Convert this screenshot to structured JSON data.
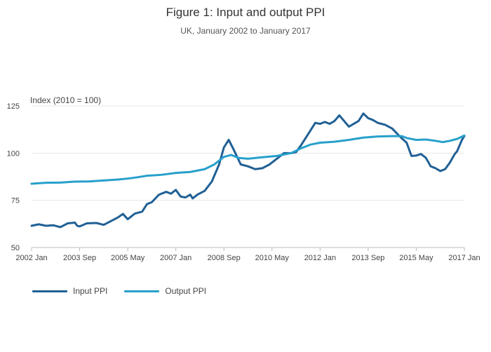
{
  "chart_data": {
    "type": "line",
    "title": "Figure 1: Input and output PPI",
    "subtitle": "UK, January 2002 to January 2017",
    "ylabel": "Index (2010 = 100)",
    "xlabel": "",
    "ylim": [
      50,
      125
    ],
    "yticks": [
      50,
      75,
      100,
      125
    ],
    "xlim": [
      "2002-01",
      "2017-01"
    ],
    "xticks": [
      {
        "label": "2002 Jan",
        "date": "2002-01"
      },
      {
        "label": "2003 Sep",
        "date": "2003-09"
      },
      {
        "label": "2005 May",
        "date": "2005-05"
      },
      {
        "label": "2007 Jan",
        "date": "2007-01"
      },
      {
        "label": "2008 Sep",
        "date": "2008-09"
      },
      {
        "label": "2010 May",
        "date": "2010-05"
      },
      {
        "label": "2012 Jan",
        "date": "2012-01"
      },
      {
        "label": "2013 Sep",
        "date": "2013-09"
      },
      {
        "label": "2015 May",
        "date": "2015-05"
      },
      {
        "label": "2017 Jan",
        "date": "2017-01"
      }
    ],
    "grid": true,
    "legend_position": "bottom-left",
    "series": [
      {
        "name": "Input PPI",
        "color": "#206095",
        "points": [
          [
            "2002-01",
            61.5
          ],
          [
            "2002-04",
            62.3
          ],
          [
            "2002-07",
            61.5
          ],
          [
            "2002-10",
            61.8
          ],
          [
            "2003-01",
            60.8
          ],
          [
            "2003-04",
            62.8
          ],
          [
            "2003-07",
            63.2
          ],
          [
            "2003-08",
            61.5
          ],
          [
            "2003-09",
            61.2
          ],
          [
            "2003-12",
            62.8
          ],
          [
            "2004-04",
            63.0
          ],
          [
            "2004-07",
            62.0
          ],
          [
            "2004-10",
            64.0
          ],
          [
            "2005-01",
            66.0
          ],
          [
            "2005-03",
            67.8
          ],
          [
            "2005-05",
            65.0
          ],
          [
            "2005-08",
            68.0
          ],
          [
            "2005-11",
            69.0
          ],
          [
            "2006-01",
            73.0
          ],
          [
            "2006-03",
            74.0
          ],
          [
            "2006-06",
            78.0
          ],
          [
            "2006-09",
            79.5
          ],
          [
            "2006-11",
            78.5
          ],
          [
            "2007-01",
            80.5
          ],
          [
            "2007-03",
            77.0
          ],
          [
            "2007-05",
            76.5
          ],
          [
            "2007-07",
            78.0
          ],
          [
            "2007-08",
            76.0
          ],
          [
            "2007-10",
            78.0
          ],
          [
            "2008-01",
            80.0
          ],
          [
            "2008-04",
            85.0
          ],
          [
            "2008-07",
            94.0
          ],
          [
            "2008-09",
            103.0
          ],
          [
            "2008-11",
            107.0
          ],
          [
            "2009-01",
            102.0
          ],
          [
            "2009-04",
            94.0
          ],
          [
            "2009-07",
            93.0
          ],
          [
            "2009-10",
            91.5
          ],
          [
            "2010-01",
            92.0
          ],
          [
            "2010-04",
            94.0
          ],
          [
            "2010-07",
            97.0
          ],
          [
            "2010-10",
            100.0
          ],
          [
            "2011-01",
            100.0
          ],
          [
            "2011-03",
            100.5
          ],
          [
            "2011-05",
            104.0
          ],
          [
            "2011-08",
            110.0
          ],
          [
            "2011-11",
            116.0
          ],
          [
            "2012-01",
            115.5
          ],
          [
            "2012-03",
            116.5
          ],
          [
            "2012-05",
            115.5
          ],
          [
            "2012-07",
            117.0
          ],
          [
            "2012-09",
            120.0
          ],
          [
            "2012-11",
            117.0
          ],
          [
            "2013-01",
            114.0
          ],
          [
            "2013-03",
            115.5
          ],
          [
            "2013-05",
            117.0
          ],
          [
            "2013-07",
            121.0
          ],
          [
            "2013-09",
            118.5
          ],
          [
            "2013-11",
            117.5
          ],
          [
            "2014-01",
            116.0
          ],
          [
            "2014-04",
            115.0
          ],
          [
            "2014-07",
            113.0
          ],
          [
            "2014-10",
            109.0
          ],
          [
            "2015-01",
            105.5
          ],
          [
            "2015-03",
            98.5
          ],
          [
            "2015-05",
            98.7
          ],
          [
            "2015-07",
            99.5
          ],
          [
            "2015-09",
            97.5
          ],
          [
            "2015-11",
            93.0
          ],
          [
            "2016-01",
            92.0
          ],
          [
            "2016-03",
            90.5
          ],
          [
            "2016-05",
            91.5
          ],
          [
            "2016-07",
            95.0
          ],
          [
            "2016-09",
            99.5
          ],
          [
            "2016-10",
            101.0
          ],
          [
            "2016-11",
            104.0
          ],
          [
            "2016-12",
            107.0
          ],
          [
            "2017-01",
            109.0
          ]
        ]
      },
      {
        "name": "Output PPI",
        "color": "#27A0CC",
        "points": [
          [
            "2002-01",
            83.8
          ],
          [
            "2002-07",
            84.3
          ],
          [
            "2003-01",
            84.4
          ],
          [
            "2003-07",
            84.9
          ],
          [
            "2004-01",
            85.0
          ],
          [
            "2004-07",
            85.5
          ],
          [
            "2005-01",
            86.0
          ],
          [
            "2005-05",
            86.5
          ],
          [
            "2005-09",
            87.2
          ],
          [
            "2006-01",
            88.0
          ],
          [
            "2006-07",
            88.5
          ],
          [
            "2007-01",
            89.5
          ],
          [
            "2007-07",
            90.0
          ],
          [
            "2008-01",
            91.5
          ],
          [
            "2008-05",
            94.0
          ],
          [
            "2008-09",
            98.0
          ],
          [
            "2008-12",
            99.0
          ],
          [
            "2009-03",
            97.5
          ],
          [
            "2009-07",
            97.0
          ],
          [
            "2010-01",
            97.8
          ],
          [
            "2010-07",
            98.5
          ],
          [
            "2011-01",
            100.0
          ],
          [
            "2011-05",
            102.5
          ],
          [
            "2011-09",
            104.5
          ],
          [
            "2012-01",
            105.5
          ],
          [
            "2012-07",
            106.0
          ],
          [
            "2013-01",
            107.0
          ],
          [
            "2013-07",
            108.2
          ],
          [
            "2014-01",
            108.8
          ],
          [
            "2014-07",
            109.0
          ],
          [
            "2014-11",
            109.0
          ],
          [
            "2015-01",
            108.0
          ],
          [
            "2015-05",
            107.0
          ],
          [
            "2015-09",
            107.2
          ],
          [
            "2016-01",
            106.5
          ],
          [
            "2016-04",
            105.8
          ],
          [
            "2016-07",
            106.5
          ],
          [
            "2016-10",
            107.5
          ],
          [
            "2017-01",
            109.3
          ]
        ]
      }
    ]
  }
}
